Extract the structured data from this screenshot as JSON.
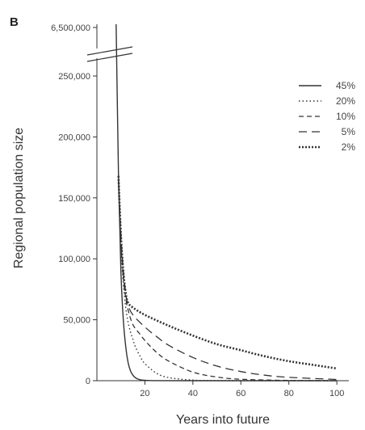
{
  "chart_data": {
    "type": "line",
    "panel_label": "B",
    "title": "",
    "xlabel": "Years into future",
    "ylabel": "Regional population size",
    "xlim": [
      0,
      105
    ],
    "ylim": [
      0,
      265000
    ],
    "axis_break": true,
    "x_ticks": [
      20,
      40,
      60,
      80,
      100
    ],
    "x_tick_labels": [
      "20",
      "40",
      "60",
      "80",
      "100"
    ],
    "y_ticks": [
      0,
      50000,
      100000,
      150000,
      200000,
      250000
    ],
    "y_tick_labels": [
      "0",
      "50,000",
      "100,000",
      "150,000",
      "200,000",
      "250,000"
    ],
    "y_break_label": "6,500,000",
    "legend_position": "top-right",
    "series": [
      {
        "name": "45%",
        "style": "solid",
        "x": [
          8,
          9,
          10,
          11,
          12,
          13,
          14,
          15,
          16,
          17,
          18,
          20,
          25,
          40,
          100
        ],
        "y": [
          6500000,
          170000,
          90000,
          50000,
          28000,
          15000,
          8000,
          4500,
          2500,
          1400,
          800,
          300,
          50,
          0,
          0
        ]
      },
      {
        "name": "20%",
        "style": "dotted",
        "x": [
          9,
          10,
          11,
          12,
          13,
          14,
          15,
          16,
          18,
          20,
          25,
          30,
          40,
          50,
          100
        ],
        "y": [
          165000,
          110000,
          80000,
          60000,
          48000,
          40000,
          34000,
          28000,
          20000,
          14000,
          6000,
          2500,
          500,
          100,
          0
        ]
      },
      {
        "name": "10%",
        "style": "dashed",
        "x": [
          9,
          10,
          11,
          12,
          13,
          15,
          18,
          20,
          25,
          30,
          40,
          50,
          60,
          80,
          100
        ],
        "y": [
          165000,
          115000,
          85000,
          68000,
          58000,
          46000,
          38000,
          33000,
          23000,
          16000,
          7000,
          3000,
          1200,
          200,
          0
        ]
      },
      {
        "name": "5%",
        "style": "long-dashed",
        "x": [
          9,
          10,
          11,
          12,
          13,
          15,
          20,
          25,
          30,
          40,
          50,
          60,
          70,
          80,
          100
        ],
        "y": [
          165000,
          120000,
          90000,
          72000,
          62000,
          54000,
          44000,
          36000,
          29000,
          19000,
          12000,
          7500,
          4500,
          2800,
          1000
        ]
      },
      {
        "name": "2%",
        "style": "dense-dotted",
        "x": [
          9,
          10,
          11,
          12,
          13,
          15,
          20,
          30,
          40,
          50,
          60,
          70,
          80,
          90,
          100
        ],
        "y": [
          168000,
          120000,
          90000,
          72000,
          64000,
          60000,
          54000,
          45000,
          37000,
          30000,
          25000,
          20000,
          16000,
          13000,
          10000
        ]
      }
    ]
  }
}
